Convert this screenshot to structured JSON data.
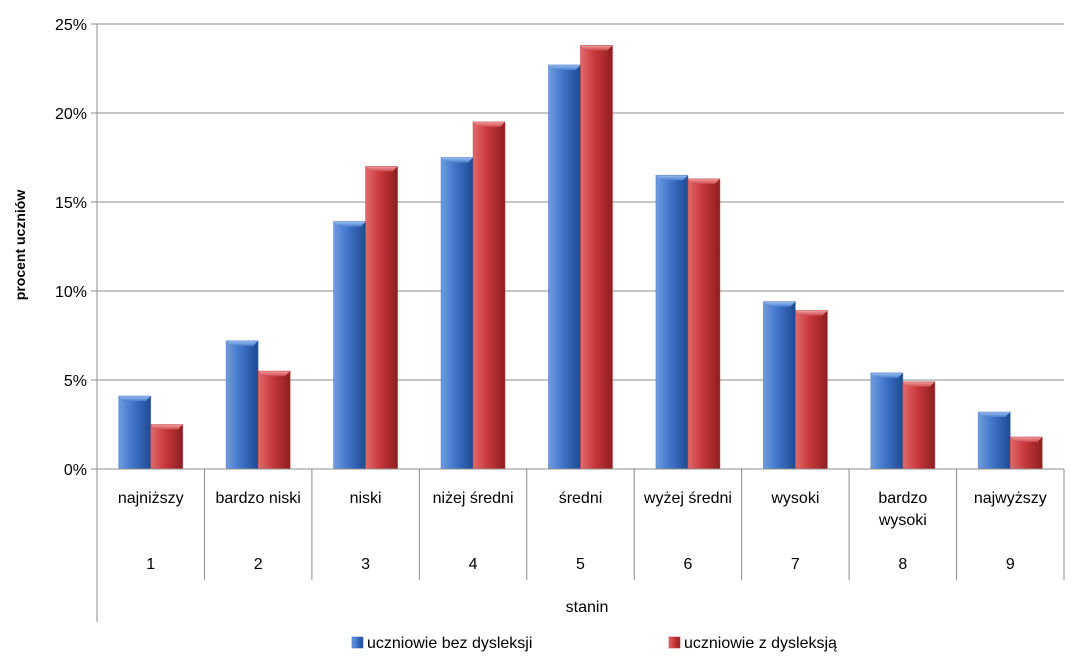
{
  "chart_data": {
    "type": "bar",
    "title": "",
    "ylabel": "procent uczniów",
    "xlabel": "stanin",
    "ylim": [
      0,
      25
    ],
    "yticks": [
      0,
      5,
      10,
      15,
      20,
      25
    ],
    "ytick_labels": [
      "0%",
      "5%",
      "10%",
      "15%",
      "20%",
      "25%"
    ],
    "categories": [
      {
        "label": [
          "najniższy"
        ],
        "number": "1"
      },
      {
        "label": [
          "bardzo niski"
        ],
        "number": "2"
      },
      {
        "label": [
          "niski"
        ],
        "number": "3"
      },
      {
        "label": [
          "niżej średni"
        ],
        "number": "4"
      },
      {
        "label": [
          "średni"
        ],
        "number": "5"
      },
      {
        "label": [
          "wyżej średni"
        ],
        "number": "6"
      },
      {
        "label": [
          "wysoki"
        ],
        "number": "7"
      },
      {
        "label": [
          "bardzo",
          "wysoki"
        ],
        "number": "8"
      },
      {
        "label": [
          "najwyższy"
        ],
        "number": "9"
      }
    ],
    "series": [
      {
        "name": "uczniowie bez dysleksji",
        "color": "#3a6fc4",
        "values": [
          4.1,
          7.2,
          13.9,
          17.5,
          22.7,
          16.5,
          9.4,
          5.4,
          3.2
        ]
      },
      {
        "name": "uczniowie z dysleksją",
        "color": "#c0393b",
        "values": [
          2.5,
          5.5,
          17.0,
          19.5,
          23.8,
          16.3,
          8.9,
          4.9,
          1.8
        ]
      }
    ],
    "legend_position": "bottom",
    "grid": true
  }
}
